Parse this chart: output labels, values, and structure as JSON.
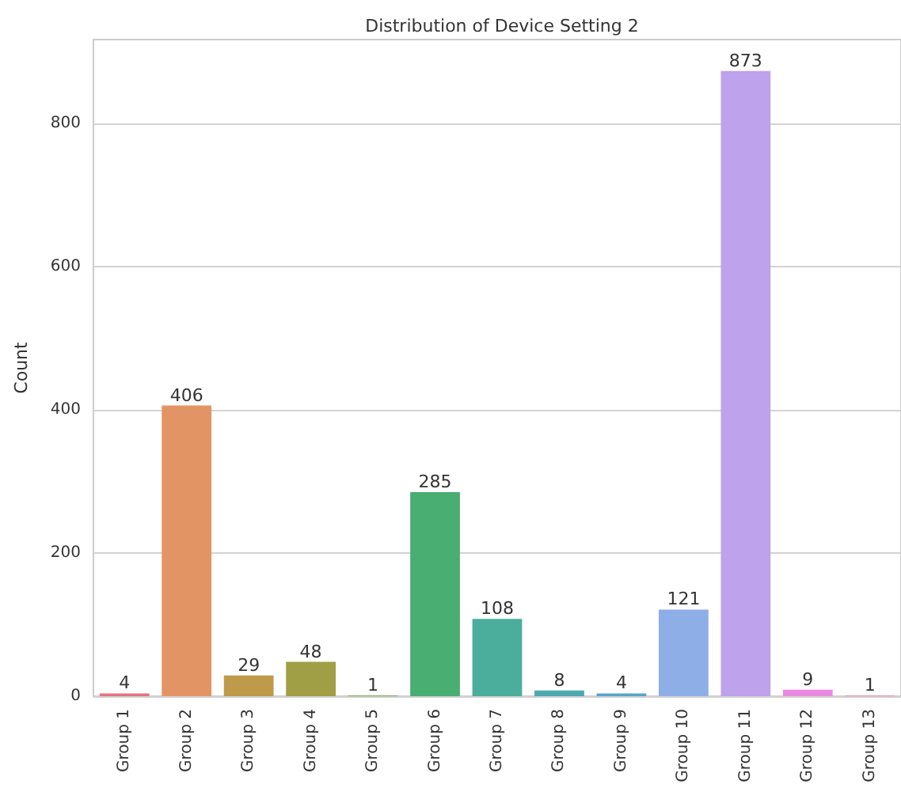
{
  "chart_data": {
    "type": "bar",
    "title": "Distribution of Device Setting 2",
    "ylabel": "Count",
    "categories": [
      "Group 1",
      "Group 2",
      "Group 3",
      "Group 4",
      "Group 5",
      "Group 6",
      "Group 7",
      "Group 8",
      "Group 9",
      "Group 10",
      "Group 11",
      "Group 12",
      "Group 13"
    ],
    "values": [
      4,
      406,
      29,
      48,
      1,
      285,
      108,
      8,
      4,
      121,
      873,
      9,
      1
    ],
    "colors": [
      "#e5737f",
      "#e39464",
      "#bf9a4b",
      "#a19f45",
      "#7fa645",
      "#48ae72",
      "#4bae9c",
      "#4ba9b0",
      "#56a5c9",
      "#8eaee8",
      "#bea2ec",
      "#e98ae0",
      "#e68bb0"
    ],
    "ylim": [
      0,
      917
    ],
    "yticks": [
      0,
      200,
      400,
      600,
      800
    ],
    "grid": "y",
    "data_labels": true
  }
}
